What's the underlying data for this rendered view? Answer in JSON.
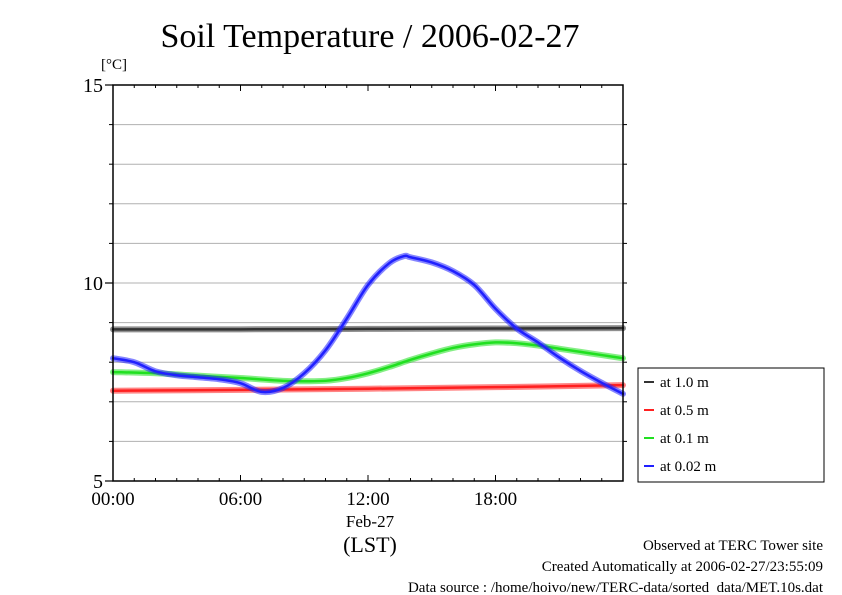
{
  "chart_data": {
    "type": "line",
    "title": "Soil Temperature / 2006-02-27",
    "ylabel": "[°C]",
    "xlabel": "(LST)",
    "date_label": "Feb-27",
    "xlim": [
      0,
      24
    ],
    "ylim": [
      5,
      15
    ],
    "x_ticks": [
      {
        "value": 0,
        "label": "00:00"
      },
      {
        "value": 6,
        "label": "06:00"
      },
      {
        "value": 12,
        "label": "12:00"
      },
      {
        "value": 18,
        "label": "18:00"
      }
    ],
    "y_ticks": [
      {
        "value": 5,
        "label": "5"
      },
      {
        "value": 10,
        "label": "10"
      },
      {
        "value": 15,
        "label": "15"
      }
    ],
    "grid": true,
    "legend_position": "right",
    "series": [
      {
        "name": "at 1.0 m",
        "color": "#333333",
        "x": [
          0,
          6,
          12,
          18,
          24
        ],
        "values": [
          8.83,
          8.83,
          8.84,
          8.85,
          8.86
        ]
      },
      {
        "name": "at 0.5 m",
        "color": "#ff2020",
        "x": [
          0,
          6,
          12,
          18,
          24
        ],
        "values": [
          7.28,
          7.3,
          7.33,
          7.37,
          7.42
        ]
      },
      {
        "name": "at 0.1 m",
        "color": "#20e020",
        "x": [
          0,
          2,
          4,
          6,
          8,
          9,
          10,
          11,
          12,
          13,
          14,
          15,
          16,
          17,
          18,
          19,
          20,
          21,
          22,
          23,
          24
        ],
        "values": [
          7.75,
          7.72,
          7.66,
          7.6,
          7.53,
          7.52,
          7.53,
          7.6,
          7.72,
          7.88,
          8.06,
          8.22,
          8.36,
          8.45,
          8.5,
          8.48,
          8.42,
          8.34,
          8.26,
          8.18,
          8.1
        ]
      },
      {
        "name": "at 0.02 m",
        "color": "#2020ff",
        "x": [
          0,
          1,
          2,
          3,
          4,
          5,
          6,
          7,
          8,
          9,
          10,
          11,
          12,
          13,
          13.7,
          14,
          15,
          16,
          17,
          18,
          19,
          20,
          21,
          22,
          23,
          24
        ],
        "values": [
          8.1,
          8.0,
          7.77,
          7.67,
          7.62,
          7.57,
          7.47,
          7.25,
          7.35,
          7.72,
          8.3,
          9.1,
          9.95,
          10.5,
          10.68,
          10.65,
          10.52,
          10.3,
          9.95,
          9.35,
          8.85,
          8.5,
          8.12,
          7.78,
          7.48,
          7.2
        ]
      }
    ]
  },
  "footer": {
    "observed": "Observed at TERC Tower site",
    "created": "Created Automatically at 2006-02-27/23:55:09",
    "source": "Data source : /home/hoivo/new/TERC-data/sorted  data/MET.10s.dat"
  }
}
